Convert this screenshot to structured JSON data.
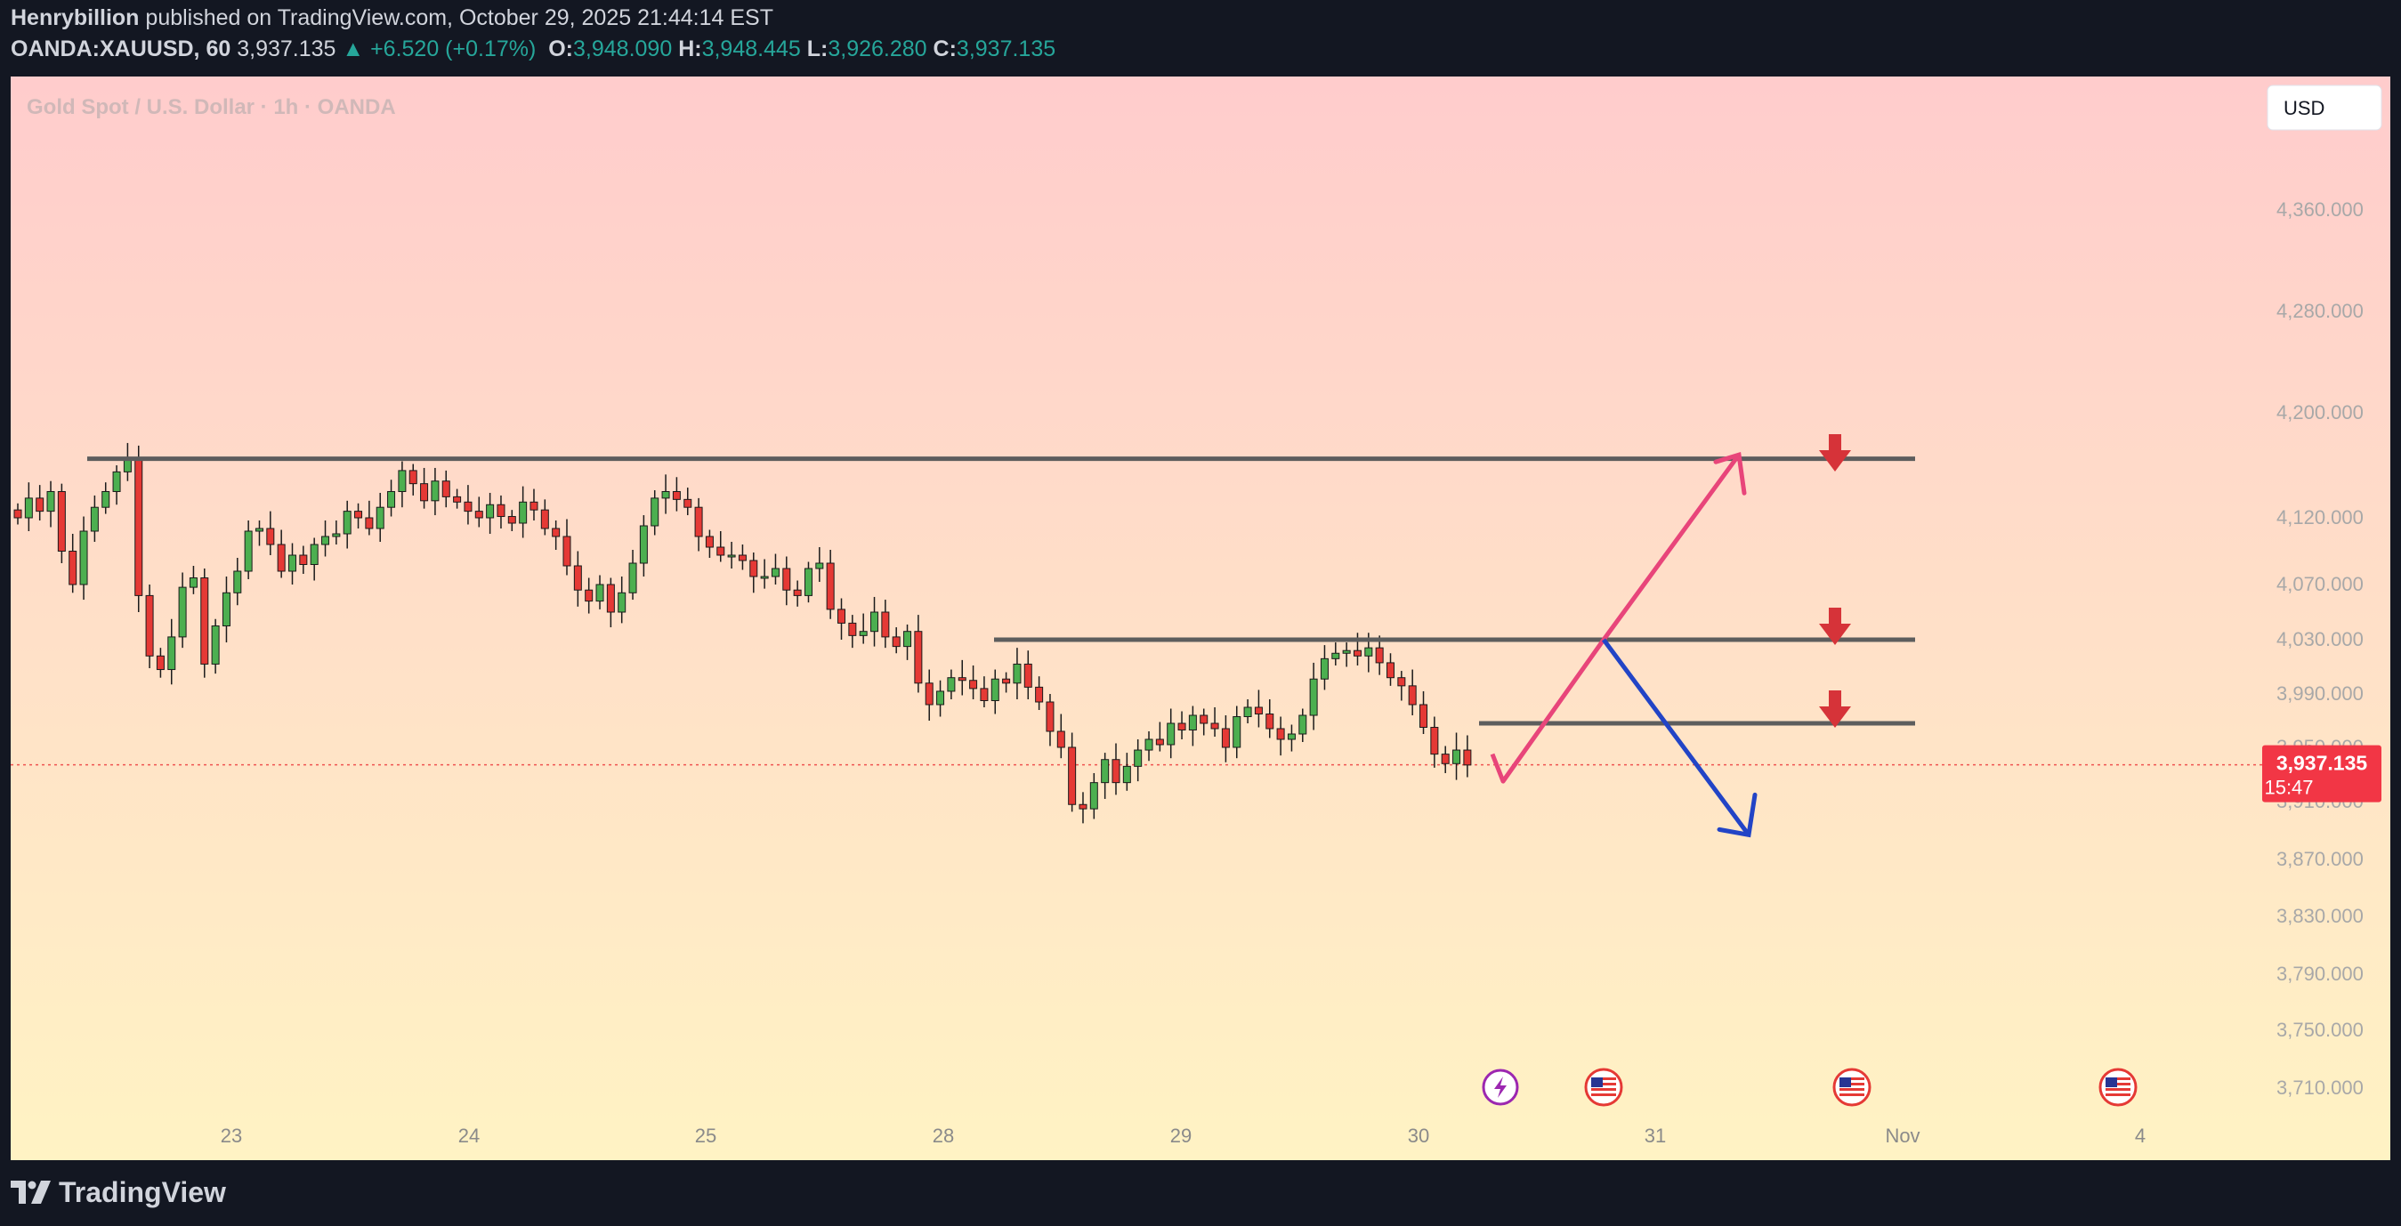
{
  "header": {
    "publisher": "Henrybillion",
    "published_text": " published on TradingView.com, October 29, 2025 21:44:14 EST",
    "symbol": "OANDA:XAUUSD, 60",
    "last": "3,937.135",
    "change": "▲ +6.520 (+0.17%)",
    "o_label": "O:",
    "o_value": "3,948.090",
    "h_label": "H:",
    "h_value": "3,948.445",
    "l_label": "L:",
    "l_value": "3,926.280",
    "c_label": "C:",
    "c_value": "3,937.135"
  },
  "chart_title": "Gold Spot / U.S. Dollar · 1h · OANDA",
  "currency_button": "USD",
  "price_tag": {
    "price": "3,937.135",
    "countdown": "15:47"
  },
  "footer": {
    "brand": "TradingView"
  },
  "icons": [
    "bolt-icon",
    "us-flag-icon",
    "us-flag-icon",
    "us-flag-icon"
  ],
  "colors": {
    "up": "#26a69a",
    "down": "#ef5350",
    "price_tag": "#f23645",
    "horizontal_line": "#5d5d5d",
    "pink_arrow": "#e8457a",
    "blue_arrow": "#2244c6",
    "marker_arrow": "#d63339",
    "bg_top": "#ffcccc",
    "bg_bottom": "#fff3c4"
  },
  "chart_data": {
    "type": "candlestick",
    "title": "Gold Spot / U.S. Dollar · 1h · OANDA",
    "y_ticks": [
      "4,360.000",
      "4,280.000",
      "4,200.000",
      "4,120.000",
      "4,070.000",
      "4,030.000",
      "3,990.000",
      "3,950.000",
      "3,910.000",
      "3,870.000",
      "3,830.000",
      "3,790.000",
      "3,750.000",
      "3,710.000"
    ],
    "x_ticks": [
      "23",
      "24",
      "25",
      "28",
      "29",
      "30",
      "31",
      "Nov",
      "4"
    ],
    "grid": false,
    "last_price": 3937.135,
    "closes": [
      4120,
      4135,
      4125,
      4140,
      4095,
      4070,
      4110,
      4128,
      4140,
      4155,
      4165,
      4062,
      4018,
      4008,
      4032,
      4068,
      4075,
      4012,
      4040,
      4064,
      4080,
      4110,
      4112,
      4100,
      4080,
      4092,
      4085,
      4100,
      4106,
      4108,
      4125,
      4120,
      4112,
      4128,
      4140,
      4156,
      4146,
      4133,
      4148,
      4136,
      4132,
      4125,
      4120,
      4130,
      4121,
      4116,
      4132,
      4126,
      4112,
      4106,
      4084,
      4066,
      4058,
      4070,
      4050,
      4064,
      4086,
      4114,
      4135,
      4140,
      4134,
      4128,
      4106,
      4098,
      4092,
      4092,
      4088,
      4076,
      4076,
      4082,
      4066,
      4062,
      4082,
      4086,
      4052,
      4042,
      4033,
      4036,
      4050,
      4032,
      4025,
      4036,
      3998,
      3982,
      3992,
      4002,
      4000,
      3994,
      3985,
      4001,
      3998,
      4012,
      3995,
      3984,
      3962,
      3950,
      3908,
      3905,
      3924,
      3941,
      3924,
      3936,
      3948,
      3956,
      3952,
      3968,
      3963,
      3974,
      3968,
      3964,
      3950,
      3973,
      3980,
      3975,
      3964,
      3956,
      3960,
      3974,
      4001,
      4016,
      4020,
      4022,
      4018,
      4024,
      4013,
      4002,
      3996,
      3982,
      3965,
      3945,
      3938,
      3948,
      3937
    ],
    "horizontal_levels": [
      4165,
      4030,
      3968
    ],
    "projection_pink": [
      [
        3945,
        3937
      ],
      [
        4030,
        3937
      ],
      [
        4168,
        3937
      ]
    ],
    "projection_blue": [
      [
        4030,
        3937
      ],
      [
        3887,
        3937
      ]
    ],
    "projection_arrows_note": "",
    "event_markers": [
      "bolt",
      "us-flag",
      "us-flag",
      "us-flag"
    ]
  }
}
